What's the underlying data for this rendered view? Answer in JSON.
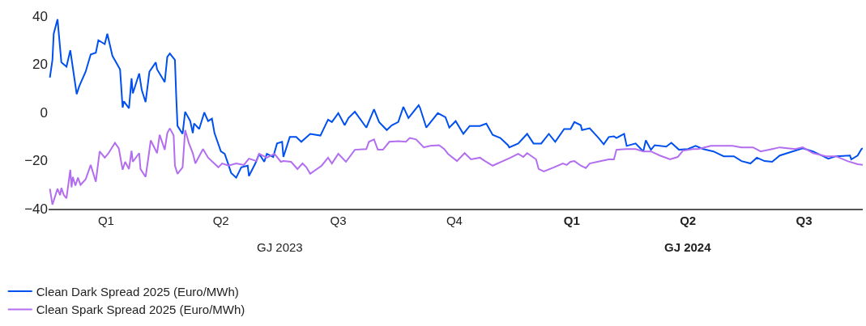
{
  "chart_data": {
    "type": "line",
    "xlim": [
      "2023-01-01",
      "2024-09-30"
    ],
    "xticks": [
      {
        "value": "2023-02-15",
        "label": "Q1"
      },
      {
        "value": "2023-05-16",
        "label": "Q2"
      },
      {
        "value": "2023-08-16",
        "label": "Q3"
      },
      {
        "value": "2023-11-15",
        "label": "Q4"
      },
      {
        "value": "2024-02-15",
        "label": "Q1"
      },
      {
        "value": "2024-05-16",
        "label": "Q2"
      },
      {
        "value": "2024-08-15",
        "label": "Q3"
      }
    ],
    "ylim": [
      -40,
      40
    ],
    "yticks": [
      {
        "value": -40,
        "label": "−40"
      },
      {
        "value": -20,
        "label": "−20"
      },
      0,
      20,
      40
    ],
    "annotations": [
      "GJ 2023",
      "GJ 2024"
    ],
    "legend": "bottom left",
    "series": [
      {
        "name": "Clean Dark Spread 2025 (Euro/MWh)",
        "color": "#0050f0",
        "x": [
          "2023-01-02",
          "2023-01-04",
          "2023-01-05",
          "2023-01-08",
          "2023-01-11",
          "2023-01-15",
          "2023-01-18",
          "2023-01-23",
          "2023-01-25",
          "2023-01-30",
          "2023-02-03",
          "2023-02-07",
          "2023-02-09",
          "2023-02-14",
          "2023-02-16",
          "2023-02-20",
          "2023-02-26",
          "2023-02-28",
          "2023-03-01",
          "2023-03-05",
          "2023-03-07",
          "2023-03-08",
          "2023-03-13",
          "2023-03-15",
          "2023-03-18",
          "2023-03-21",
          "2023-03-26",
          "2023-03-27",
          "2023-04-02",
          "2023-04-04",
          "2023-04-06",
          "2023-04-10",
          "2023-04-11",
          "2023-04-12",
          "2023-04-16",
          "2023-04-18",
          "2023-04-22",
          "2023-04-24",
          "2023-04-25",
          "2023-04-29",
          "2023-05-03",
          "2023-05-06",
          "2023-05-09",
          "2023-05-11",
          "2023-05-16",
          "2023-05-19",
          "2023-05-22",
          "2023-05-24",
          "2023-05-28",
          "2023-06-01",
          "2023-06-06",
          "2023-06-07",
          "2023-06-12",
          "2023-06-15",
          "2023-06-19",
          "2023-06-21",
          "2023-06-26",
          "2023-06-29",
          "2023-07-03",
          "2023-07-04",
          "2023-07-09",
          "2023-07-14",
          "2023-07-18",
          "2023-07-25",
          "2023-08-02",
          "2023-08-08",
          "2023-08-11",
          "2023-08-16",
          "2023-08-21",
          "2023-08-24",
          "2023-08-29",
          "2023-09-07",
          "2023-09-13",
          "2023-09-17",
          "2023-09-23",
          "2023-09-27",
          "2023-10-02",
          "2023-10-06",
          "2023-10-10",
          "2023-10-18",
          "2023-10-19",
          "2023-10-24",
          "2023-11-02",
          "2023-11-08",
          "2023-11-11",
          "2023-11-16",
          "2023-11-22",
          "2023-11-27",
          "2023-12-05",
          "2023-12-10",
          "2023-12-15",
          "2023-12-21",
          "2023-12-27",
          "2023-12-28",
          "2024-01-04",
          "2024-01-11",
          "2024-01-16",
          "2024-01-22",
          "2024-01-28",
          "2024-02-02",
          "2024-02-09",
          "2024-02-14",
          "2024-02-17",
          "2024-02-22",
          "2024-02-23",
          "2024-02-29",
          "2024-03-07",
          "2024-03-11",
          "2024-03-15",
          "2024-03-19",
          "2024-03-21",
          "2024-03-27",
          "2024-03-29",
          "2024-04-05",
          "2024-04-11",
          "2024-04-13",
          "2024-04-17",
          "2024-04-20",
          "2024-04-29",
          "2024-05-03",
          "2024-05-09",
          "2024-05-16",
          "2024-05-22",
          "2024-05-28",
          "2024-06-05",
          "2024-06-13",
          "2024-06-21",
          "2024-06-27",
          "2024-07-04",
          "2024-07-09",
          "2024-07-15",
          "2024-07-21",
          "2024-07-27",
          "2024-08-06",
          "2024-08-14",
          "2024-08-22",
          "2024-09-03",
          "2024-09-09",
          "2024-09-20",
          "2024-09-21",
          "2024-09-26",
          "2024-09-29",
          "2024-09-30"
        ],
        "values": [
          14.5,
          21.8,
          32.7,
          38.7,
          20.8,
          19,
          25.8,
          7.6,
          10.9,
          16.9,
          24.1,
          24.8,
          30,
          28.4,
          32.7,
          23.5,
          17.9,
          2,
          4.6,
          1.7,
          14.2,
          7.9,
          16.2,
          9.3,
          4.3,
          16.9,
          20.8,
          17.9,
          12.6,
          23.1,
          24.5,
          21.8,
          6.9,
          -5.6,
          -8.9,
          0.3,
          -3.6,
          -8.6,
          -4.6,
          -6.9,
          0,
          -3.6,
          -2.6,
          -8.6,
          -16.2,
          -17.2,
          -21.8,
          -25.1,
          -27.1,
          -22.8,
          -22.1,
          -26.4,
          -21.2,
          -17.2,
          -20.5,
          -17.2,
          -18.5,
          -12.9,
          -12.2,
          -18.5,
          -10.2,
          -10.2,
          -12.2,
          -8.9,
          -9.6,
          -3,
          -4,
          -0.3,
          -5.3,
          -2.3,
          0.3,
          -6.3,
          1.3,
          -4,
          -7.3,
          -5.3,
          -4,
          2.3,
          -2.3,
          3,
          2,
          -6.3,
          -0.3,
          -2,
          -6.3,
          -3.6,
          -8.9,
          -5.6,
          -5.6,
          -4.6,
          -9.3,
          -10.6,
          -13.6,
          -14.5,
          -12.9,
          -8.9,
          -12.9,
          -12.9,
          -8.9,
          -12.2,
          -6.9,
          -6.9,
          -4,
          -5.3,
          -7.3,
          -6.6,
          -10.6,
          -13.2,
          -10.2,
          -9.9,
          -10.6,
          -8.9,
          -13.9,
          -12.9,
          -16.2,
          -11.6,
          -15.5,
          -13.6,
          -14.2,
          -12.6,
          -15.5,
          -15.2,
          -13.9,
          -15.2,
          -16.2,
          -18.2,
          -18.2,
          -20.2,
          -21.2,
          -18.8,
          -20.2,
          -20.5,
          -17.9,
          -16.2,
          -14.9,
          -16.2,
          -19.2,
          -18.2,
          -17.9,
          -19.5,
          -17.9,
          -15.2,
          -14.9
        ]
      },
      {
        "name": "Clean Spark Spread 2025 (Euro/MWh)",
        "color": "#b36ef0",
        "x": [
          "2023-01-02",
          "2023-01-04",
          "2023-01-06",
          "2023-01-08",
          "2023-01-10",
          "2023-01-11",
          "2023-01-13",
          "2023-01-15",
          "2023-01-18",
          "2023-01-19",
          "2023-01-20",
          "2023-01-22",
          "2023-01-24",
          "2023-01-26",
          "2023-01-30",
          "2023-02-03",
          "2023-02-07",
          "2023-02-10",
          "2023-02-14",
          "2023-02-17",
          "2023-02-22",
          "2023-02-25",
          "2023-02-28",
          "2023-03-02",
          "2023-03-05",
          "2023-03-07",
          "2023-03-08",
          "2023-03-13",
          "2023-03-14",
          "2023-03-18",
          "2023-03-20",
          "2023-03-22",
          "2023-03-27",
          "2023-03-29",
          "2023-04-02",
          "2023-04-04",
          "2023-04-06",
          "2023-04-09",
          "2023-04-10",
          "2023-04-12",
          "2023-04-16",
          "2023-04-18",
          "2023-04-21",
          "2023-04-24",
          "2023-04-26",
          "2023-05-02",
          "2023-05-06",
          "2023-05-14",
          "2023-05-17",
          "2023-05-22",
          "2023-05-28",
          "2023-06-03",
          "2023-06-07",
          "2023-06-13",
          "2023-06-15",
          "2023-06-21",
          "2023-06-27",
          "2023-07-02",
          "2023-07-04",
          "2023-07-10",
          "2023-07-15",
          "2023-07-19",
          "2023-07-22",
          "2023-07-25",
          "2023-08-03",
          "2023-08-08",
          "2023-08-11",
          "2023-08-16",
          "2023-08-22",
          "2023-08-29",
          "2023-09-07",
          "2023-09-09",
          "2023-09-13",
          "2023-09-16",
          "2023-09-20",
          "2023-09-25",
          "2023-10-02",
          "2023-10-08",
          "2023-10-11",
          "2023-10-16",
          "2023-10-22",
          "2023-10-27",
          "2023-11-03",
          "2023-11-07",
          "2023-11-10",
          "2023-11-17",
          "2023-11-23",
          "2023-11-28",
          "2023-12-05",
          "2023-12-09",
          "2023-12-15",
          "2023-12-23",
          "2023-12-29",
          "2024-01-04",
          "2024-01-08",
          "2024-01-11",
          "2024-01-18",
          "2024-01-20",
          "2024-01-24",
          "2024-02-01",
          "2024-02-08",
          "2024-02-11",
          "2024-02-14",
          "2024-02-17",
          "2024-02-22",
          "2024-02-26",
          "2024-02-29",
          "2024-03-09",
          "2024-03-15",
          "2024-03-19",
          "2024-03-21",
          "2024-03-29",
          "2024-04-05",
          "2024-04-11",
          "2024-04-17",
          "2024-04-24",
          "2024-05-02",
          "2024-05-08",
          "2024-05-12",
          "2024-05-20",
          "2024-05-24",
          "2024-06-03",
          "2024-06-11",
          "2024-06-20",
          "2024-06-27",
          "2024-07-06",
          "2024-07-12",
          "2024-07-21",
          "2024-07-27",
          "2024-08-08",
          "2024-08-14",
          "2024-08-22",
          "2024-09-01",
          "2024-09-09",
          "2024-09-18",
          "2024-09-26",
          "2024-09-30"
        ],
        "values": [
          -31.7,
          -38.3,
          -35,
          -31.7,
          -34.4,
          -31.4,
          -34.4,
          -35.7,
          -23.8,
          -31.1,
          -26.8,
          -30.4,
          -27.1,
          -30.1,
          -27.8,
          -21.8,
          -28.8,
          -16.2,
          -18.8,
          -16.9,
          -12.6,
          -14.9,
          -23.8,
          -20.5,
          -23.5,
          -15.9,
          -20.5,
          -16.9,
          -23.5,
          -26.8,
          -19.5,
          -11.6,
          -16.9,
          -9.3,
          -15.5,
          -8.6,
          -6.6,
          -9.6,
          -22.1,
          -25.5,
          -22.8,
          -7.3,
          -12.9,
          -16.9,
          -21.2,
          -15.2,
          -18.8,
          -22.8,
          -21.2,
          -22.1,
          -21.2,
          -21.8,
          -19.2,
          -20.2,
          -17.2,
          -18.8,
          -17.2,
          -20.5,
          -20.2,
          -20.5,
          -23.5,
          -21.2,
          -22.8,
          -25.5,
          -22.1,
          -18.8,
          -21.2,
          -17.2,
          -20.5,
          -15.5,
          -15.2,
          -12.2,
          -11.2,
          -15.5,
          -15.5,
          -12.2,
          -11.9,
          -12.2,
          -10.6,
          -11.2,
          -14.5,
          -13.9,
          -13.6,
          -15.2,
          -17.2,
          -20.2,
          -16.9,
          -19.5,
          -18.8,
          -20.2,
          -22.1,
          -20.2,
          -18.8,
          -17.2,
          -18.5,
          -16.9,
          -19.5,
          -23.5,
          -24.5,
          -22.8,
          -21.2,
          -21.8,
          -20.5,
          -20.2,
          -22.1,
          -23.1,
          -21.2,
          -20.2,
          -19.5,
          -19.5,
          -15.5,
          -15.2,
          -15.2,
          -16.2,
          -16.2,
          -17.9,
          -19.5,
          -18.5,
          -15.9,
          -15.2,
          -15.2,
          -13.9,
          -13.9,
          -13.9,
          -14.5,
          -14.5,
          -16.2,
          -15.2,
          -14.5,
          -15.2,
          -14.5,
          -16.9,
          -18.2,
          -18.2,
          -20.2,
          -21.5,
          -21.8
        ]
      }
    ]
  }
}
